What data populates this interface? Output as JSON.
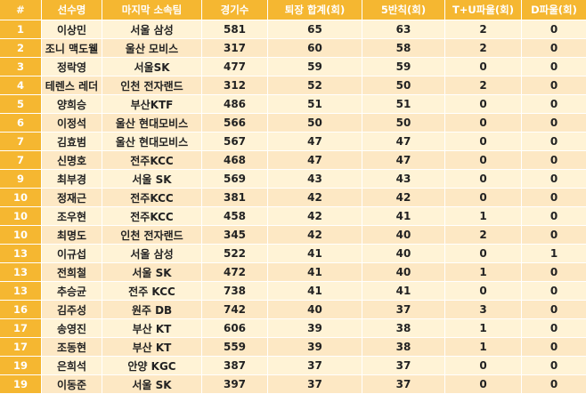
{
  "table": {
    "headers": [
      "#",
      "선수명",
      "마지막 소속팀",
      "경기수",
      "퇴장 합계(회)",
      "5반칙(회)",
      "T+U파울(회)",
      "D파울(회)"
    ],
    "rows": [
      [
        "1",
        "이상민",
        "서울 삼성",
        "581",
        "65",
        "63",
        "2",
        "0"
      ],
      [
        "2",
        "조니 맥도웰",
        "울산 모비스",
        "317",
        "60",
        "58",
        "2",
        "0"
      ],
      [
        "3",
        "정락영",
        "서울SK",
        "477",
        "59",
        "59",
        "0",
        "0"
      ],
      [
        "4",
        "테렌스 레더",
        "인천 전자랜드",
        "312",
        "52",
        "50",
        "2",
        "0"
      ],
      [
        "5",
        "양희승",
        "부산KTF",
        "486",
        "51",
        "51",
        "0",
        "0"
      ],
      [
        "6",
        "이정석",
        "울산 현대모비스",
        "566",
        "50",
        "50",
        "0",
        "0"
      ],
      [
        "7",
        "김효범",
        "울산 현대모비스",
        "567",
        "47",
        "47",
        "0",
        "0"
      ],
      [
        "7",
        "신명호",
        "전주KCC",
        "468",
        "47",
        "47",
        "0",
        "0"
      ],
      [
        "9",
        "최부경",
        "서울 SK",
        "569",
        "43",
        "43",
        "0",
        "0"
      ],
      [
        "10",
        "정재근",
        "전주KCC",
        "381",
        "42",
        "42",
        "0",
        "0"
      ],
      [
        "10",
        "조우현",
        "전주KCC",
        "458",
        "42",
        "41",
        "1",
        "0"
      ],
      [
        "10",
        "최명도",
        "인천 전자랜드",
        "345",
        "42",
        "40",
        "2",
        "0"
      ],
      [
        "13",
        "이규섭",
        "서울 삼성",
        "522",
        "41",
        "40",
        "0",
        "1"
      ],
      [
        "13",
        "전희철",
        "서울 SK",
        "472",
        "41",
        "40",
        "1",
        "0"
      ],
      [
        "13",
        "추승균",
        "전주 KCC",
        "738",
        "41",
        "41",
        "0",
        "0"
      ],
      [
        "16",
        "김주성",
        "원주 DB",
        "742",
        "40",
        "37",
        "3",
        "0"
      ],
      [
        "17",
        "송영진",
        "부산 KT",
        "606",
        "39",
        "38",
        "1",
        "0"
      ],
      [
        "17",
        "조동현",
        "부산 KT",
        "559",
        "39",
        "38",
        "1",
        "0"
      ],
      [
        "19",
        "은희석",
        "안양 KGC",
        "387",
        "37",
        "37",
        "0",
        "0"
      ],
      [
        "19",
        "이동준",
        "서울 SK",
        "397",
        "37",
        "37",
        "0",
        "0"
      ]
    ]
  }
}
